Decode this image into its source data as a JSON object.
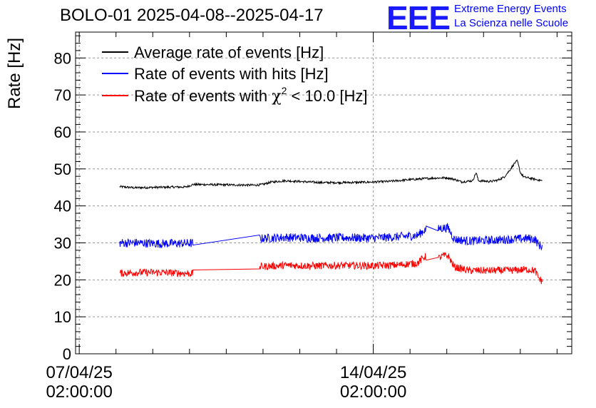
{
  "header": {
    "title": "BOLO-01 2025-04-08--2025-04-17",
    "logo": "EEE",
    "logo_line1": "Extreme Energy Events",
    "logo_line2": "La Scienza nelle Scuole"
  },
  "chart_data": {
    "type": "line",
    "title": "BOLO-01 2025-04-08--2025-04-17",
    "ylabel": "Rate [Hz]",
    "xlabel": "",
    "ylim": [
      0,
      87
    ],
    "yticks": [
      0,
      10,
      20,
      30,
      40,
      50,
      60,
      70,
      80
    ],
    "ytick_labels": [
      "0",
      "10",
      "20",
      "30",
      "40",
      "50",
      "60",
      "70",
      "80"
    ],
    "xlim_days": [
      -0.05,
      6.7
    ],
    "x_unit": "days since 07/04/25 02:00:00",
    "xticks": [
      {
        "day": 0,
        "label1": "07/04/25",
        "label2": "02:00:00"
      },
      {
        "day": 4,
        "label1": "14/04/25",
        "label2": "02:00:00"
      }
    ],
    "grid": true,
    "legend_position": "top-left",
    "legend": [
      {
        "label": "Average rate of events [Hz]",
        "color": "#000000"
      },
      {
        "label": "Rate of events with hits [Hz]",
        "color": "#0000ff"
      },
      {
        "label": "Rate of events with χ² < 10.0 [Hz]",
        "color": "#ff0000",
        "prefix": "Rate of events with ",
        "chi": "χ",
        "sup": "2",
        "suffix": " < 10.0 [Hz]"
      }
    ],
    "series": [
      {
        "name": "Average rate of events [Hz]",
        "color": "#000000",
        "noise": 0.3,
        "points": [
          [
            0.55,
            45.2
          ],
          [
            0.75,
            44.9
          ],
          [
            1.0,
            45.0
          ],
          [
            1.3,
            45.1
          ],
          [
            1.45,
            45.1
          ],
          [
            1.55,
            45.8
          ],
          [
            2.4,
            45.6
          ],
          [
            2.5,
            45.8
          ],
          [
            2.6,
            46.4
          ],
          [
            2.8,
            46.8
          ],
          [
            3.0,
            46.6
          ],
          [
            3.3,
            46.3
          ],
          [
            3.6,
            46.3
          ],
          [
            3.9,
            46.4
          ],
          [
            4.2,
            46.6
          ],
          [
            4.5,
            47.1
          ],
          [
            4.8,
            47.5
          ],
          [
            5.0,
            47.6
          ],
          [
            5.1,
            47.2
          ],
          [
            5.2,
            46.5
          ],
          [
            5.35,
            46.8
          ],
          [
            5.4,
            49.0
          ],
          [
            5.43,
            46.8
          ],
          [
            5.6,
            46.6
          ],
          [
            5.7,
            47.0
          ],
          [
            5.78,
            47.8
          ],
          [
            5.85,
            49.5
          ],
          [
            5.92,
            51.5
          ],
          [
            5.96,
            52.2
          ],
          [
            6.0,
            49.0
          ],
          [
            6.05,
            47.8
          ],
          [
            6.2,
            47.2
          ],
          [
            6.3,
            46.8
          ]
        ]
      },
      {
        "name": "Rate of events with hits [Hz]",
        "color": "#0000ff",
        "noise": 1.2,
        "points": [
          [
            0.55,
            30.0
          ],
          [
            0.8,
            30.0
          ],
          [
            1.1,
            29.8
          ],
          [
            1.55,
            29.9
          ],
          [
            2.5,
            31.2
          ],
          [
            2.8,
            31.5
          ],
          [
            3.2,
            31.3
          ],
          [
            3.6,
            31.4
          ],
          [
            4.0,
            31.3
          ],
          [
            4.3,
            31.6
          ],
          [
            4.6,
            32.0
          ],
          [
            4.7,
            33.5
          ],
          [
            4.85,
            33.0
          ],
          [
            4.9,
            34.0
          ],
          [
            5.02,
            34.0
          ],
          [
            5.1,
            31.0
          ],
          [
            5.3,
            30.5
          ],
          [
            5.6,
            30.7
          ],
          [
            5.9,
            31.0
          ],
          [
            6.1,
            31.2
          ],
          [
            6.2,
            31.0
          ],
          [
            6.25,
            29.5
          ],
          [
            6.3,
            29.0
          ]
        ],
        "gaps": [
          [
            1.55,
            2.45
          ],
          [
            4.72,
            4.88
          ]
        ]
      },
      {
        "name": "Rate of events with χ² < 10.0 [Hz]",
        "color": "#ff0000",
        "noise": 1.0,
        "points": [
          [
            0.55,
            21.8
          ],
          [
            0.8,
            22.0
          ],
          [
            1.1,
            22.0
          ],
          [
            1.55,
            21.7
          ],
          [
            2.5,
            23.6
          ],
          [
            2.8,
            23.9
          ],
          [
            3.2,
            23.8
          ],
          [
            3.6,
            23.9
          ],
          [
            4.0,
            23.8
          ],
          [
            4.3,
            24.0
          ],
          [
            4.6,
            24.5
          ],
          [
            4.7,
            26.3
          ],
          [
            4.85,
            25.5
          ],
          [
            4.95,
            26.5
          ],
          [
            5.02,
            26.5
          ],
          [
            5.1,
            23.5
          ],
          [
            5.3,
            22.5
          ],
          [
            5.6,
            22.5
          ],
          [
            5.9,
            22.6
          ],
          [
            6.1,
            22.8
          ],
          [
            6.2,
            22.5
          ],
          [
            6.25,
            20.5
          ],
          [
            6.3,
            19.5
          ]
        ],
        "gaps": [
          [
            1.55,
            2.45
          ],
          [
            4.72,
            4.88
          ]
        ]
      }
    ]
  }
}
